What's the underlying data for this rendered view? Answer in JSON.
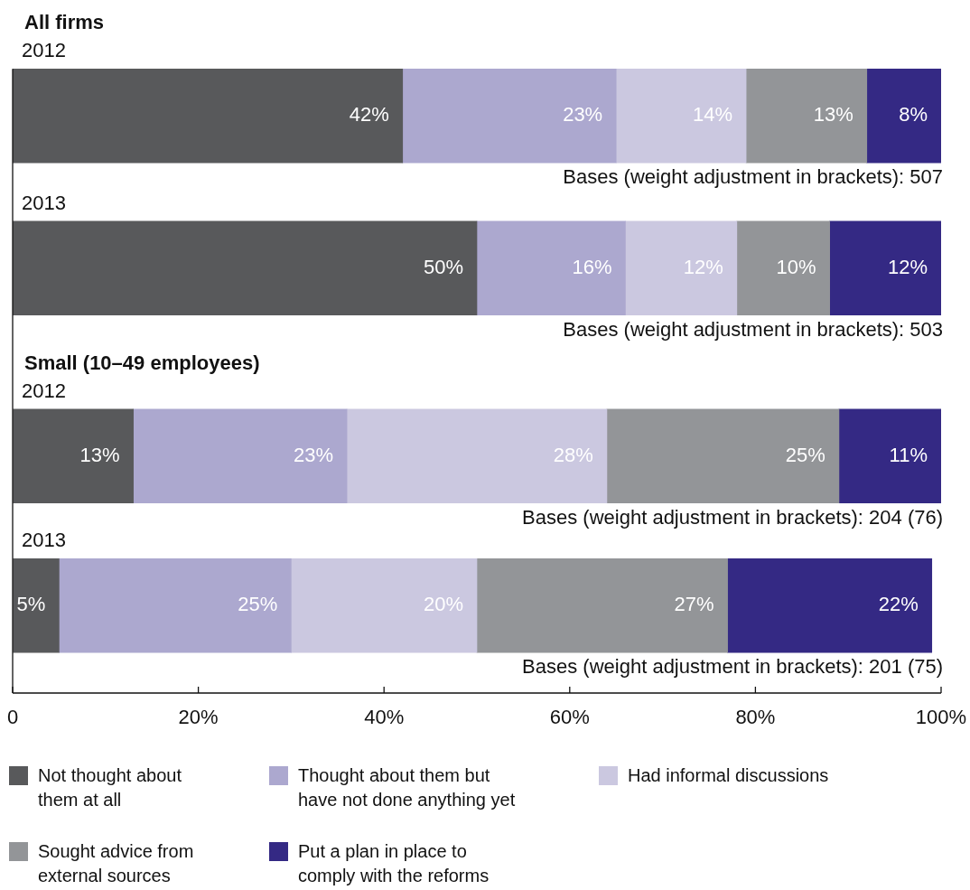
{
  "chart_data": [
    {
      "type": "bar",
      "orientation": "horizontal",
      "stacked": true,
      "title": "All firms",
      "categories": [
        "2012",
        "2013"
      ],
      "series": [
        {
          "color": "#58595b",
          "values": [
            42,
            50
          ],
          "value_labels": [
            "42%",
            "50%"
          ]
        },
        {
          "color": "#aca8cf",
          "values": [
            23,
            16
          ],
          "value_labels": [
            "23%",
            "16%"
          ]
        },
        {
          "color": "#cbc8e0",
          "values": [
            14,
            12
          ],
          "value_labels": [
            "14%",
            "12%"
          ]
        },
        {
          "color": "#939598",
          "values": [
            13,
            10
          ],
          "value_labels": [
            "13%",
            "10%"
          ]
        },
        {
          "color": "#342984",
          "values": [
            8,
            12
          ],
          "value_labels": [
            "8%",
            "12%"
          ]
        }
      ],
      "xlim": [
        0,
        100
      ],
      "tick_labels": "y",
      "annotations": [
        "Bases (weight adjustment in brackets): 507",
        "Bases (weight adjustment in brackets): 503"
      ]
    },
    {
      "type": "bar",
      "orientation": "horizontal",
      "stacked": true,
      "title": "Small (10–49 employees)",
      "categories": [
        "2012",
        "2013"
      ],
      "series": [
        {
          "name": "Not thought about them at all",
          "color": "#58595b",
          "values": [
            13,
            5
          ],
          "value_labels": [
            "13%",
            "5%"
          ]
        },
        {
          "name": "Thought about them but have not done anything yet",
          "color": "#aca8cf",
          "values": [
            23,
            25
          ],
          "value_labels": [
            "23%",
            "25%"
          ]
        },
        {
          "name": "Had informal discussions",
          "color": "#cbc8e0",
          "values": [
            28,
            20
          ],
          "value_labels": [
            "28%",
            "20%"
          ]
        },
        {
          "name": "Sought advice from external sources",
          "color": "#939598",
          "values": [
            25,
            27
          ],
          "value_labels": [
            "25%",
            "27%"
          ]
        },
        {
          "name": "Put a plan in place to comply with the reforms",
          "color": "#342984",
          "values": [
            11,
            22
          ],
          "value_labels": [
            "11%",
            "22%"
          ]
        }
      ],
      "xlim": [
        0,
        100
      ],
      "xticks": [
        0,
        {
          "value": 20,
          "label": "20%"
        },
        {
          "value": 40,
          "label": "40%"
        },
        {
          "value": 60,
          "label": "60%"
        },
        {
          "value": 80,
          "label": "80%"
        },
        {
          "value": 100,
          "label": "100%"
        }
      ],
      "legend": "bottom",
      "annotations": [
        "Bases (weight adjustment in brackets): 204 (76)",
        "Bases (weight adjustment in brackets): 201 (75)"
      ]
    }
  ]
}
